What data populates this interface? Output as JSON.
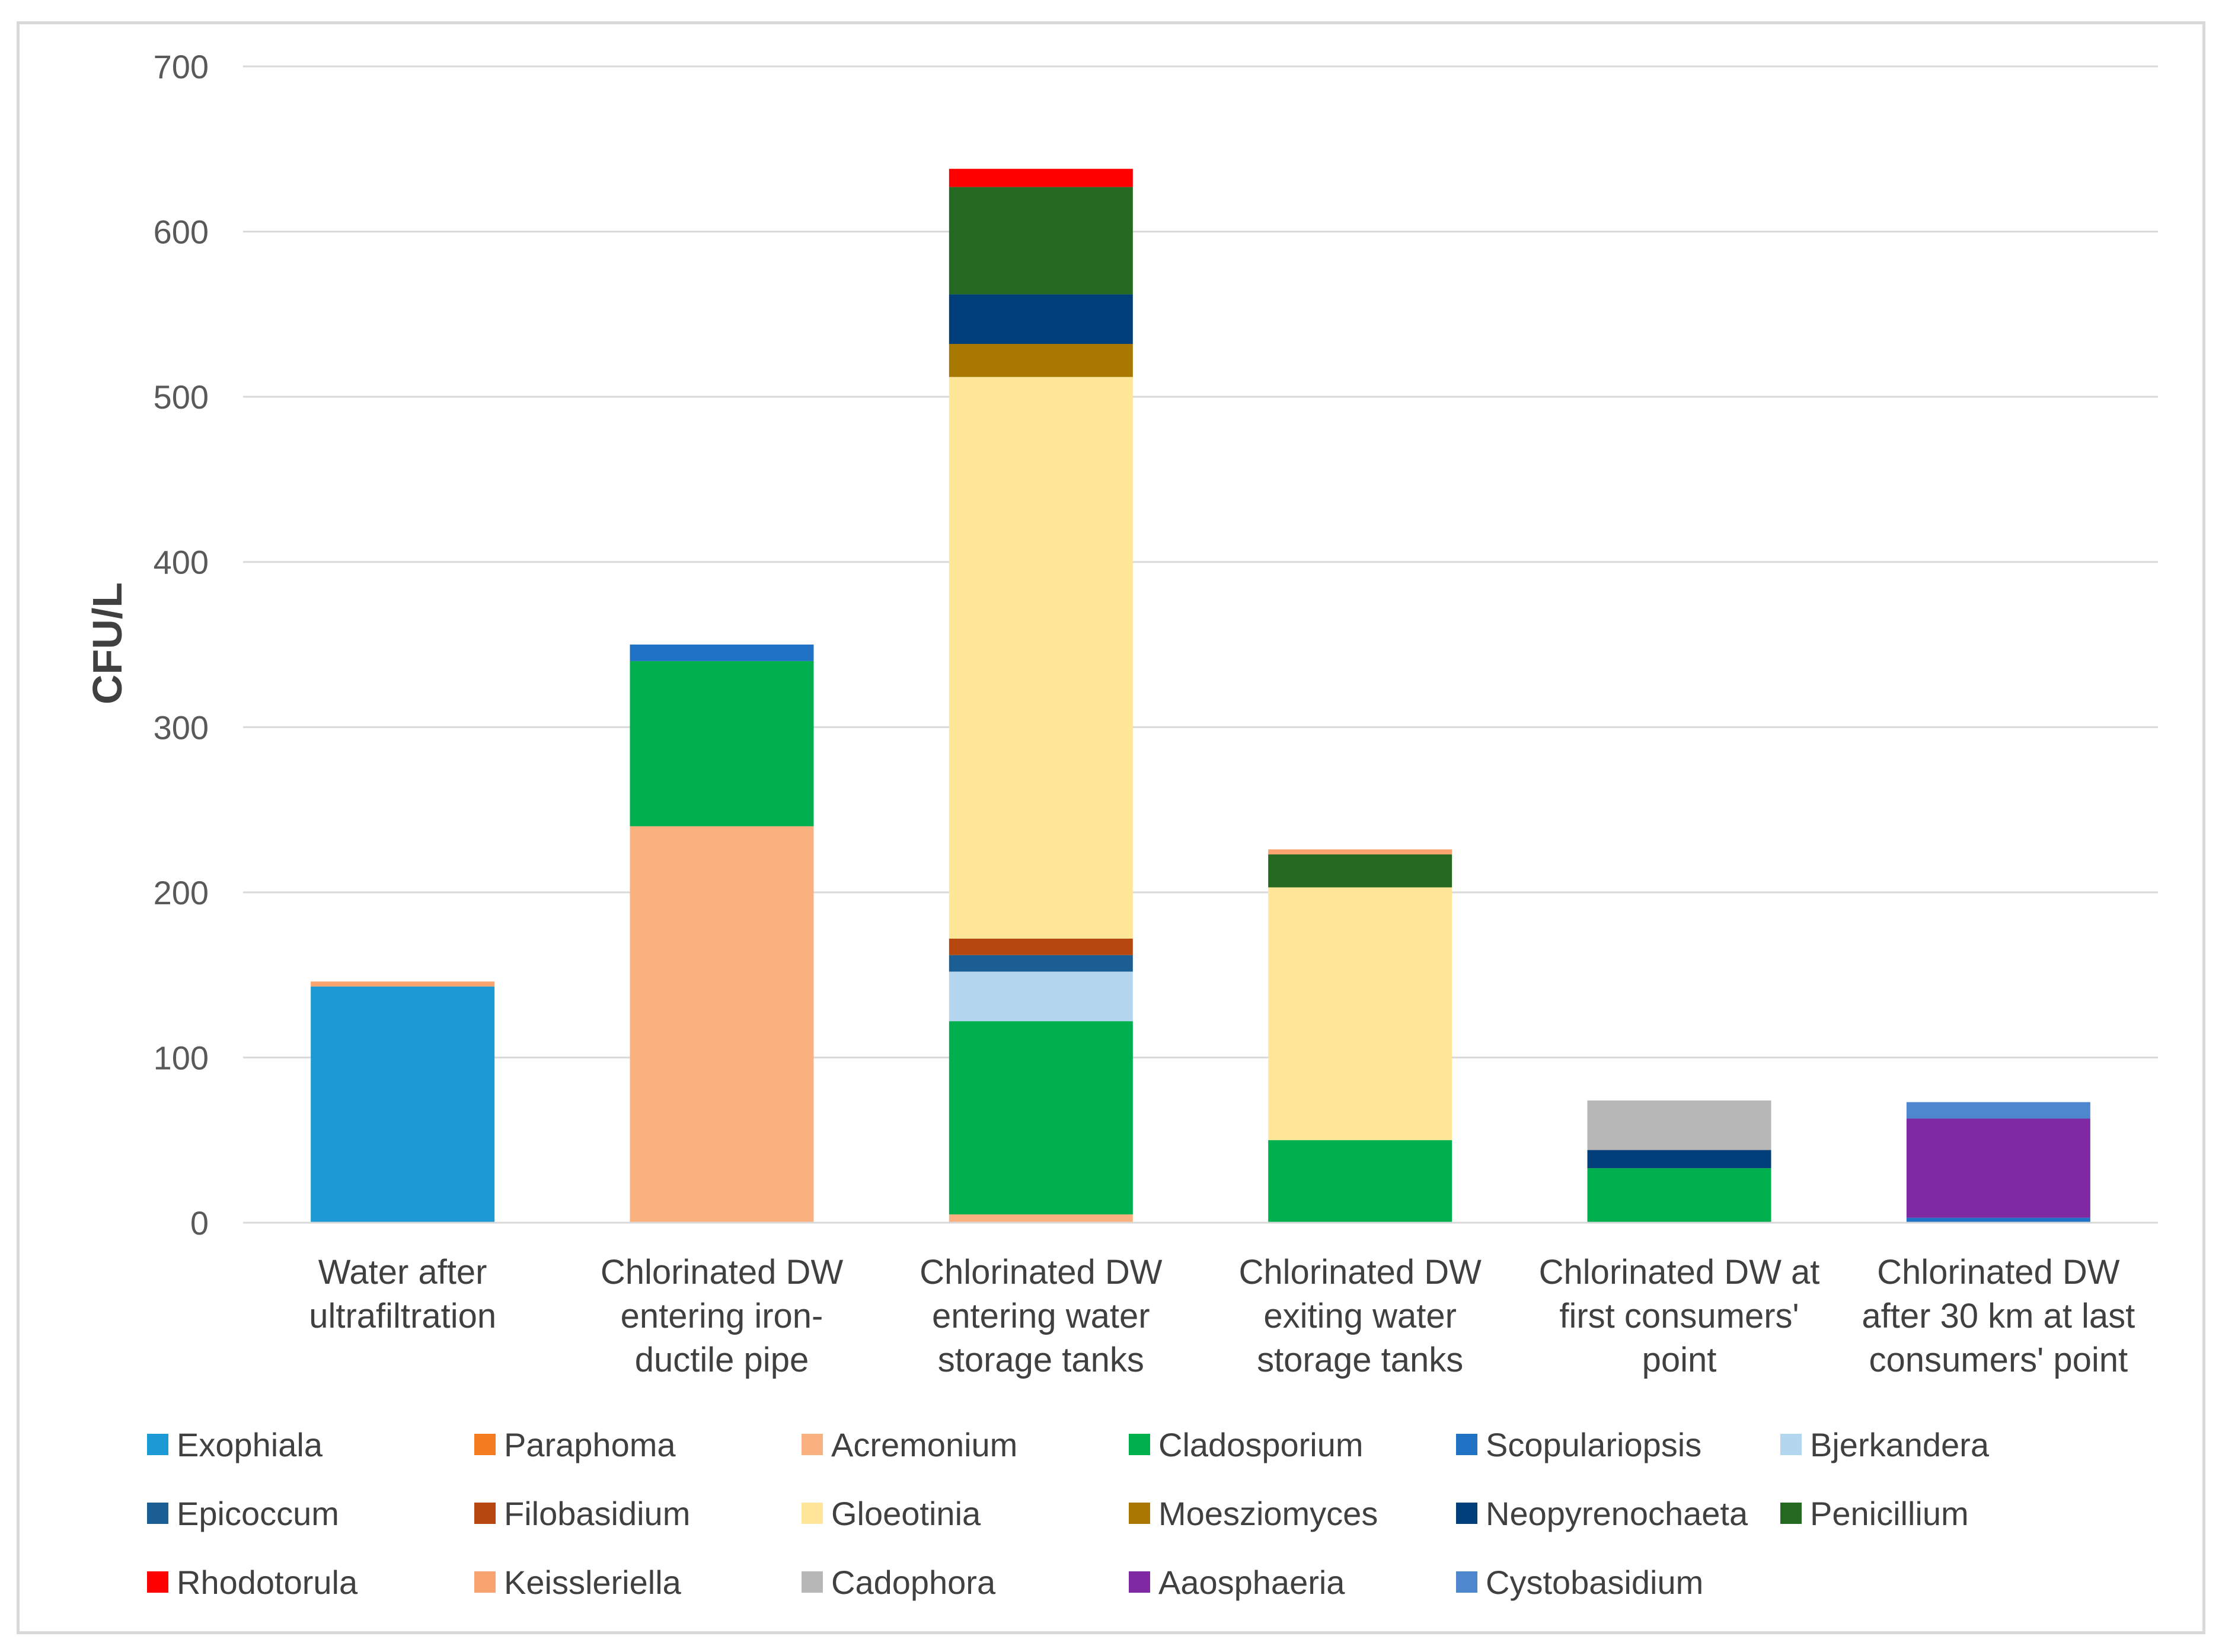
{
  "chart_data": {
    "type": "bar",
    "stacked": true,
    "title": "",
    "xlabel": "",
    "ylabel": "CFU/L",
    "ylim": [
      0,
      700
    ],
    "yticks": [
      0,
      100,
      200,
      300,
      400,
      500,
      600,
      700
    ],
    "grid": true,
    "legend_position": "bottom",
    "categories": [
      [
        "Water after",
        "ultrafiltration"
      ],
      [
        "Chlorinated DW",
        "entering iron-",
        "ductile pipe"
      ],
      [
        "Chlorinated DW",
        "entering water",
        "storage tanks"
      ],
      [
        "Chlorinated DW",
        "exiting water",
        "storage tanks"
      ],
      [
        "Chlorinated DW at",
        "first consumers'",
        "point"
      ],
      [
        "Chlorinated DW",
        "after 30 km at last",
        "consumers' point"
      ]
    ],
    "series": [
      {
        "name": "Exophiala",
        "color": "#1B9AD6",
        "values": [
          143,
          0,
          0,
          0,
          0,
          0
        ]
      },
      {
        "name": "Paraphoma",
        "color": "#F47B20",
        "values": [
          0,
          0,
          0,
          0,
          0,
          0
        ]
      },
      {
        "name": "Acremonium",
        "color": "#FBB080",
        "values": [
          0,
          240,
          5,
          0,
          0,
          0
        ]
      },
      {
        "name": "Cladosporium",
        "color": "#00B04E",
        "values": [
          0,
          100,
          117,
          50,
          33,
          0
        ]
      },
      {
        "name": "Scopulariopsis",
        "color": "#1F72C4",
        "values": [
          0,
          10,
          0,
          0,
          0,
          3
        ]
      },
      {
        "name": "Bjerkandera",
        "color": "#B4D7EF",
        "values": [
          0,
          0,
          30,
          0,
          0,
          0
        ]
      },
      {
        "name": "Epicoccum",
        "color": "#1A5E94",
        "values": [
          0,
          0,
          10,
          0,
          0,
          0
        ]
      },
      {
        "name": "Filobasidium",
        "color": "#B5470F",
        "values": [
          0,
          0,
          10,
          0,
          0,
          0
        ]
      },
      {
        "name": "Gloeotinia",
        "color": "#FFE699",
        "values": [
          0,
          0,
          340,
          153,
          0,
          0
        ]
      },
      {
        "name": "Moesziomyces",
        "color": "#A87800",
        "values": [
          0,
          0,
          20,
          0,
          0,
          0
        ]
      },
      {
        "name": "Neopyrenochaeta",
        "color": "#003F7A",
        "values": [
          0,
          0,
          30,
          0,
          11,
          0
        ]
      },
      {
        "name": "Penicillium",
        "color": "#256923",
        "values": [
          0,
          0,
          65,
          20,
          0,
          0
        ]
      },
      {
        "name": "Rhodotorula",
        "color": "#FF0000",
        "values": [
          0,
          0,
          11,
          0,
          0,
          0
        ]
      },
      {
        "name": "Keissleriella",
        "color": "#F9A46E",
        "values": [
          3,
          0,
          0,
          3,
          0,
          0
        ]
      },
      {
        "name": "Cadophora",
        "color": "#B7B7B7",
        "values": [
          0,
          0,
          0,
          0,
          30,
          0
        ]
      },
      {
        "name": "Aaosphaeria",
        "color": "#7F2AA2",
        "values": [
          0,
          0,
          0,
          0,
          0,
          60
        ]
      },
      {
        "name": "Cystobasidium",
        "color": "#4F87CF",
        "values": [
          0,
          0,
          0,
          0,
          0,
          10
        ]
      }
    ]
  }
}
